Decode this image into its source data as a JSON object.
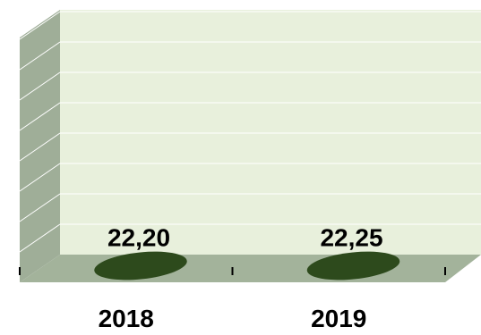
{
  "chart_data": {
    "type": "bar",
    "style": "3d-cylinder",
    "categories": [
      "2018",
      "2019"
    ],
    "values": [
      22.2,
      22.25
    ],
    "data_labels": [
      "22,20",
      "22,25"
    ],
    "title": "",
    "xlabel": "",
    "ylabel": "",
    "y_tick_labels_shown": false,
    "gridlines": true,
    "legend": "none",
    "colors": {
      "back_wall": "#e8f0dc",
      "side_wall": "#9fae98",
      "floor": "#a3b39b",
      "bar": "#2d4a1c",
      "gridline": "#ffffff"
    }
  }
}
